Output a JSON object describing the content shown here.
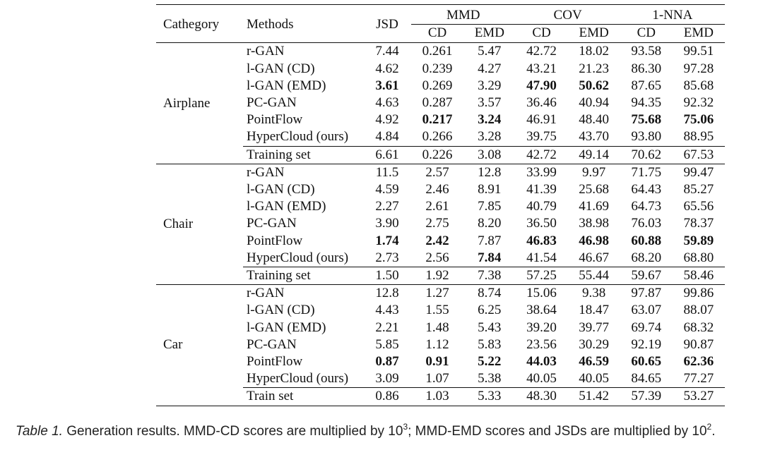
{
  "header": {
    "category": "Cathegory",
    "methods": "Methods",
    "jsd": "JSD",
    "mmd": "MMD",
    "cov": "COV",
    "nna": "1-NNA",
    "cd": "CD",
    "emd": "EMD"
  },
  "groups": [
    {
      "name": "Airplane",
      "rows": [
        {
          "method": "r-GAN",
          "values": [
            "7.44",
            "0.261",
            "5.47",
            "42.72",
            "18.02",
            "93.58",
            "99.51"
          ],
          "bold": []
        },
        {
          "method": "l-GAN (CD)",
          "values": [
            "4.62",
            "0.239",
            "4.27",
            "43.21",
            "21.23",
            "86.30",
            "97.28"
          ],
          "bold": []
        },
        {
          "method": "l-GAN (EMD)",
          "values": [
            "3.61",
            "0.269",
            "3.29",
            "47.90",
            "50.62",
            "87.65",
            "85.68"
          ],
          "bold": [
            0,
            3,
            4
          ]
        },
        {
          "method": "PC-GAN",
          "values": [
            "4.63",
            "0.287",
            "3.57",
            "36.46",
            "40.94",
            "94.35",
            "92.32"
          ],
          "bold": []
        },
        {
          "method": "PointFlow",
          "values": [
            "4.92",
            "0.217",
            "3.24",
            "46.91",
            "48.40",
            "75.68",
            "75.06"
          ],
          "bold": [
            1,
            2,
            5,
            6
          ]
        },
        {
          "method": "HyperCloud (ours)",
          "values": [
            "4.84",
            "0.266",
            "3.28",
            "39.75",
            "43.70",
            "93.80",
            "88.95"
          ],
          "bold": []
        }
      ],
      "ref": {
        "method": "Training set",
        "values": [
          "6.61",
          "0.226",
          "3.08",
          "42.72",
          "49.14",
          "70.62",
          "67.53"
        ]
      }
    },
    {
      "name": "Chair",
      "rows": [
        {
          "method": "r-GAN",
          "values": [
            "11.5",
            "2.57",
            "12.8",
            "33.99",
            "9.97",
            "71.75",
            "99.47"
          ],
          "bold": []
        },
        {
          "method": "l-GAN (CD)",
          "values": [
            "4.59",
            "2.46",
            "8.91",
            "41.39",
            "25.68",
            "64.43",
            "85.27"
          ],
          "bold": []
        },
        {
          "method": "l-GAN (EMD)",
          "values": [
            "2.27",
            "2.61",
            "7.85",
            "40.79",
            "41.69",
            "64.73",
            "65.56"
          ],
          "bold": []
        },
        {
          "method": "PC-GAN",
          "values": [
            "3.90",
            "2.75",
            "8.20",
            "36.50",
            "38.98",
            "76.03",
            "78.37"
          ],
          "bold": []
        },
        {
          "method": "PointFlow",
          "values": [
            "1.74",
            "2.42",
            "7.87",
            "46.83",
            "46.98",
            "60.88",
            "59.89"
          ],
          "bold": [
            0,
            1,
            3,
            4,
            5,
            6
          ]
        },
        {
          "method": "HyperCloud (ours)",
          "values": [
            "2.73",
            "2.56",
            "7.84",
            "41.54",
            "46.67",
            "68.20",
            "68.80"
          ],
          "bold": [
            2
          ]
        }
      ],
      "ref": {
        "method": "Training set",
        "values": [
          "1.50",
          "1.92",
          "7.38",
          "57.25",
          "55.44",
          "59.67",
          "58.46"
        ]
      }
    },
    {
      "name": "Car",
      "rows": [
        {
          "method": "r-GAN",
          "values": [
            "12.8",
            "1.27",
            "8.74",
            "15.06",
            "9.38",
            "97.87",
            "99.86"
          ],
          "bold": []
        },
        {
          "method": "l-GAN (CD)",
          "values": [
            "4.43",
            "1.55",
            "6.25",
            "38.64",
            "18.47",
            "63.07",
            "88.07"
          ],
          "bold": []
        },
        {
          "method": "l-GAN (EMD)",
          "values": [
            "2.21",
            "1.48",
            "5.43",
            "39.20",
            "39.77",
            "69.74",
            "68.32"
          ],
          "bold": []
        },
        {
          "method": "PC-GAN",
          "values": [
            "5.85",
            "1.12",
            "5.83",
            "23.56",
            "30.29",
            "92.19",
            "90.87"
          ],
          "bold": []
        },
        {
          "method": "PointFlow",
          "values": [
            "0.87",
            "0.91",
            "5.22",
            "44.03",
            "46.59",
            "60.65",
            "62.36"
          ],
          "bold": [
            0,
            1,
            2,
            3,
            4,
            5,
            6
          ]
        },
        {
          "method": "HyperCloud (ours)",
          "values": [
            "3.09",
            "1.07",
            "5.38",
            "40.05",
            "40.05",
            "84.65",
            "77.27"
          ],
          "bold": []
        }
      ],
      "ref": {
        "method": "Train set",
        "values": [
          "0.86",
          "1.03",
          "5.33",
          "48.30",
          "51.42",
          "57.39",
          "53.27"
        ]
      }
    }
  ],
  "caption": {
    "label": "Table 1.",
    "text_a": " Generation results. MMD-CD scores are multiplied by 10",
    "exp_a": "3",
    "text_b": "; MMD-EMD scores and JSDs are multiplied by 10",
    "exp_b": "2",
    "text_c": "."
  }
}
